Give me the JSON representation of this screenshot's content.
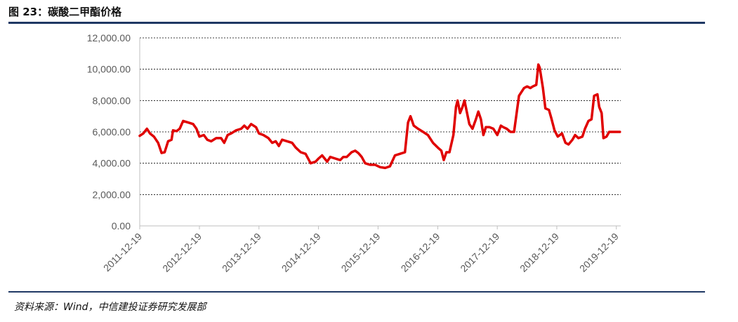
{
  "header": {
    "title": "图 23：碳酸二甲酯价格"
  },
  "footer": {
    "source": "资料来源：Wind，中信建投证券研究发展部"
  },
  "colors": {
    "series": "#e00000",
    "rule": "#1f3864",
    "grid": "#000000",
    "axis": "#bfbfbf",
    "text": "#595959"
  },
  "chart_data": {
    "type": "line",
    "title": "",
    "xlabel": "",
    "ylabel": "",
    "ylim": [
      0,
      12000
    ],
    "yticks": [
      "0.00",
      "2,000.00",
      "4,000.00",
      "6,000.00",
      "8,000.00",
      "10,000.00",
      "12,000.00"
    ],
    "xticks": [
      "2011-12-19",
      "2012-12-19",
      "2013-12-19",
      "2014-12-19",
      "2015-12-19",
      "2016-12-19",
      "2017-12-19",
      "2018-12-19",
      "2019-12-19"
    ],
    "xlim": [
      "2011-12-19",
      "2020-01-15"
    ],
    "grid": "horizontal dashed",
    "series": [
      {
        "name": "",
        "points": [
          [
            "2011-12-19",
            5750
          ],
          [
            "2012-01-10",
            5900
          ],
          [
            "2012-02-01",
            6200
          ],
          [
            "2012-02-20",
            5900
          ],
          [
            "2012-03-15",
            5700
          ],
          [
            "2012-04-10",
            5300
          ],
          [
            "2012-05-01",
            4650
          ],
          [
            "2012-05-20",
            4700
          ],
          [
            "2012-06-10",
            5400
          ],
          [
            "2012-07-01",
            5500
          ],
          [
            "2012-07-10",
            6100
          ],
          [
            "2012-08-01",
            6050
          ],
          [
            "2012-08-20",
            6200
          ],
          [
            "2012-09-10",
            6700
          ],
          [
            "2012-10-10",
            6600
          ],
          [
            "2012-11-10",
            6500
          ],
          [
            "2012-12-01",
            6200
          ],
          [
            "2012-12-19",
            5700
          ],
          [
            "2013-01-15",
            5800
          ],
          [
            "2013-02-05",
            5500
          ],
          [
            "2013-03-01",
            5400
          ],
          [
            "2013-04-01",
            5600
          ],
          [
            "2013-05-01",
            5600
          ],
          [
            "2013-05-20",
            5300
          ],
          [
            "2013-06-10",
            5800
          ],
          [
            "2013-07-01",
            5900
          ],
          [
            "2013-08-01",
            6100
          ],
          [
            "2013-09-01",
            6200
          ],
          [
            "2013-09-20",
            6400
          ],
          [
            "2013-10-10",
            6200
          ],
          [
            "2013-11-01",
            6500
          ],
          [
            "2013-12-01",
            6300
          ],
          [
            "2013-12-19",
            5900
          ],
          [
            "2014-01-15",
            5800
          ],
          [
            "2014-02-15",
            5600
          ],
          [
            "2014-03-10",
            5300
          ],
          [
            "2014-04-01",
            5400
          ],
          [
            "2014-04-20",
            5100
          ],
          [
            "2014-05-10",
            5500
          ],
          [
            "2014-06-10",
            5400
          ],
          [
            "2014-07-10",
            5300
          ],
          [
            "2014-08-01",
            5000
          ],
          [
            "2014-09-01",
            4700
          ],
          [
            "2014-10-01",
            4600
          ],
          [
            "2014-11-01",
            4000
          ],
          [
            "2014-12-01",
            4100
          ],
          [
            "2014-12-19",
            4300
          ],
          [
            "2015-01-10",
            4500
          ],
          [
            "2015-02-10",
            4100
          ],
          [
            "2015-03-01",
            4400
          ],
          [
            "2015-04-01",
            4300
          ],
          [
            "2015-05-01",
            4200
          ],
          [
            "2015-05-20",
            4400
          ],
          [
            "2015-06-10",
            4400
          ],
          [
            "2015-07-10",
            4700
          ],
          [
            "2015-08-01",
            4800
          ],
          [
            "2015-08-20",
            4650
          ],
          [
            "2015-09-10",
            4400
          ],
          [
            "2015-10-01",
            4000
          ],
          [
            "2015-11-01",
            3900
          ],
          [
            "2015-12-01",
            3900
          ],
          [
            "2016-01-01",
            3750
          ],
          [
            "2016-02-01",
            3700
          ],
          [
            "2016-03-01",
            3800
          ],
          [
            "2016-04-01",
            4500
          ],
          [
            "2016-05-01",
            4600
          ],
          [
            "2016-06-01",
            4700
          ],
          [
            "2016-06-20",
            6600
          ],
          [
            "2016-07-05",
            7000
          ],
          [
            "2016-07-25",
            6400
          ],
          [
            "2016-08-20",
            6200
          ],
          [
            "2016-09-20",
            6000
          ],
          [
            "2016-10-20",
            5800
          ],
          [
            "2016-11-20",
            5300
          ],
          [
            "2016-12-19",
            5000
          ],
          [
            "2017-01-10",
            4800
          ],
          [
            "2017-01-25",
            4200
          ],
          [
            "2017-02-10",
            4700
          ],
          [
            "2017-03-01",
            4700
          ],
          [
            "2017-03-25",
            5800
          ],
          [
            "2017-04-10",
            7600
          ],
          [
            "2017-04-20",
            8000
          ],
          [
            "2017-05-05",
            7200
          ],
          [
            "2017-05-20",
            7600
          ],
          [
            "2017-06-01",
            8000
          ],
          [
            "2017-06-15",
            7300
          ],
          [
            "2017-07-01",
            6500
          ],
          [
            "2017-07-20",
            6200
          ],
          [
            "2017-08-10",
            6800
          ],
          [
            "2017-08-25",
            7300
          ],
          [
            "2017-09-10",
            6800
          ],
          [
            "2017-09-25",
            5800
          ],
          [
            "2017-10-10",
            6300
          ],
          [
            "2017-11-01",
            6300
          ],
          [
            "2017-11-25",
            6200
          ],
          [
            "2017-12-19",
            5800
          ],
          [
            "2018-01-10",
            6400
          ],
          [
            "2018-01-25",
            6300
          ],
          [
            "2018-02-15",
            6200
          ],
          [
            "2018-03-10",
            6000
          ],
          [
            "2018-04-01",
            6000
          ],
          [
            "2018-05-01",
            8300
          ],
          [
            "2018-06-01",
            8800
          ],
          [
            "2018-06-20",
            8900
          ],
          [
            "2018-07-10",
            8800
          ],
          [
            "2018-07-25",
            8900
          ],
          [
            "2018-08-15",
            9000
          ],
          [
            "2018-08-28",
            10300
          ],
          [
            "2018-09-05",
            10100
          ],
          [
            "2018-09-25",
            8800
          ],
          [
            "2018-10-10",
            7500
          ],
          [
            "2018-11-01",
            7400
          ],
          [
            "2018-11-15",
            6900
          ],
          [
            "2018-12-05",
            6100
          ],
          [
            "2018-12-25",
            5700
          ],
          [
            "2019-01-20",
            5900
          ],
          [
            "2019-02-10",
            5300
          ],
          [
            "2019-03-01",
            5200
          ],
          [
            "2019-03-25",
            5500
          ],
          [
            "2019-04-10",
            5800
          ],
          [
            "2019-05-01",
            5600
          ],
          [
            "2019-05-25",
            5700
          ],
          [
            "2019-06-10",
            6200
          ],
          [
            "2019-07-01",
            6700
          ],
          [
            "2019-07-20",
            6800
          ],
          [
            "2019-08-05",
            8300
          ],
          [
            "2019-08-25",
            8400
          ],
          [
            "2019-09-05",
            7600
          ],
          [
            "2019-09-20",
            7200
          ],
          [
            "2019-10-01",
            5600
          ],
          [
            "2019-10-20",
            5700
          ],
          [
            "2019-11-05",
            6000
          ],
          [
            "2019-11-25",
            6000
          ],
          [
            "2019-12-19",
            6000
          ],
          [
            "2020-01-10",
            6000
          ]
        ]
      }
    ]
  }
}
